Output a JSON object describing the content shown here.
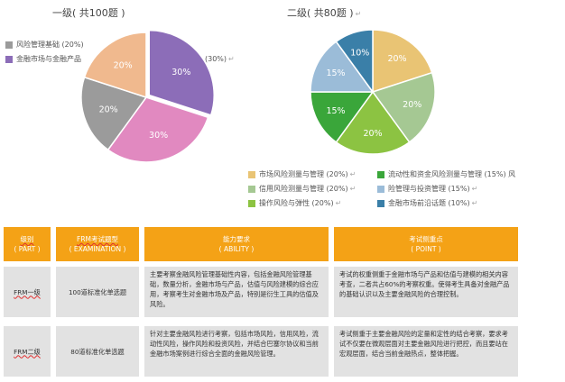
{
  "chart_data": [
    {
      "type": "pie",
      "title": "一级( 共100题 )",
      "slices": [
        {
          "label": "风险管理基础 (20%)",
          "value": 20,
          "color": "#f0b98e"
        },
        {
          "label": "金融市场与金融产品 (30%)",
          "value": 30,
          "color": "#8c6db8"
        },
        {
          "label": "",
          "value": 30,
          "color": "#e189c0"
        },
        {
          "label": "",
          "value": 20,
          "color": "#9b9b9b"
        }
      ],
      "data_labels": [
        "20%",
        "30%",
        "30%",
        "20%"
      ],
      "legend": [
        "风险管理基础 (20%)",
        "金融市场与金融产品",
        "(30%)"
      ]
    },
    {
      "type": "pie",
      "title": "二级( 共80题 )",
      "slices": [
        {
          "label": "市场风险测量与管理 (20%)",
          "value": 20,
          "color": "#e9c474"
        },
        {
          "label": "信用风险测量与管理 (20%)",
          "value": 20,
          "color": "#a5c893"
        },
        {
          "label": "操作风险与弹性 (20%)",
          "value": 20,
          "color": "#8cc342"
        },
        {
          "label": "流动性和资金风险测量与管理 (15%)",
          "value": 15,
          "color": "#3aa63a"
        },
        {
          "label": "险管理与投资管理 (15%)",
          "value": 15,
          "color": "#9bbcd8"
        },
        {
          "label": "金融市场前沿话题 (10%)",
          "value": 10,
          "color": "#3a7fa8"
        }
      ],
      "data_labels": [
        "20%",
        "20%",
        "20%",
        "15%",
        "15%",
        "10%"
      ],
      "legend_suffix": "风"
    }
  ],
  "table": {
    "headers": [
      {
        "cn": "级别",
        "en": "( PART )"
      },
      {
        "cn": "FRM考试题型",
        "en": "( EXAMINATION )"
      },
      {
        "cn": "能力要求",
        "en": "( ABILITY )"
      },
      {
        "cn": "考试侧重点",
        "en": "( POINT )"
      }
    ],
    "rows": [
      {
        "part": "FRM一级",
        "exam": "100道标准化单选题",
        "ability": "主要考察金融风险管理基础性内容，包括金融风险管理基础，数量分析，金融市场与产品，估值与风险建模的综合应用，考察考生对金融市场及产品，特别是衍生工具的估值及风险。",
        "point": "考试的权重侧重于金融市场与产品和估值与建模的相关内容考查，二者共占60%的考察权重。使得考生具备对金融产品的基础认识以及主要金融风险的合理控制。"
      },
      {
        "part": "FRM二级",
        "exam": "80道标准化单选题",
        "ability": "针对主要金融风险进行考察，包括市场风险，信用风险，流动性风险，操作风险和投资风险，并结合巴塞尔协议和当前金融市场案例进行综合全面的金融风险管理。",
        "point": "考试侧重于主要金融风险的定量和定性的结合考察，要求考试不仅要在微观层面对主要金融风险进行把控，而且要站在宏观层面，结合当前金融热点，整体把握。"
      }
    ]
  }
}
